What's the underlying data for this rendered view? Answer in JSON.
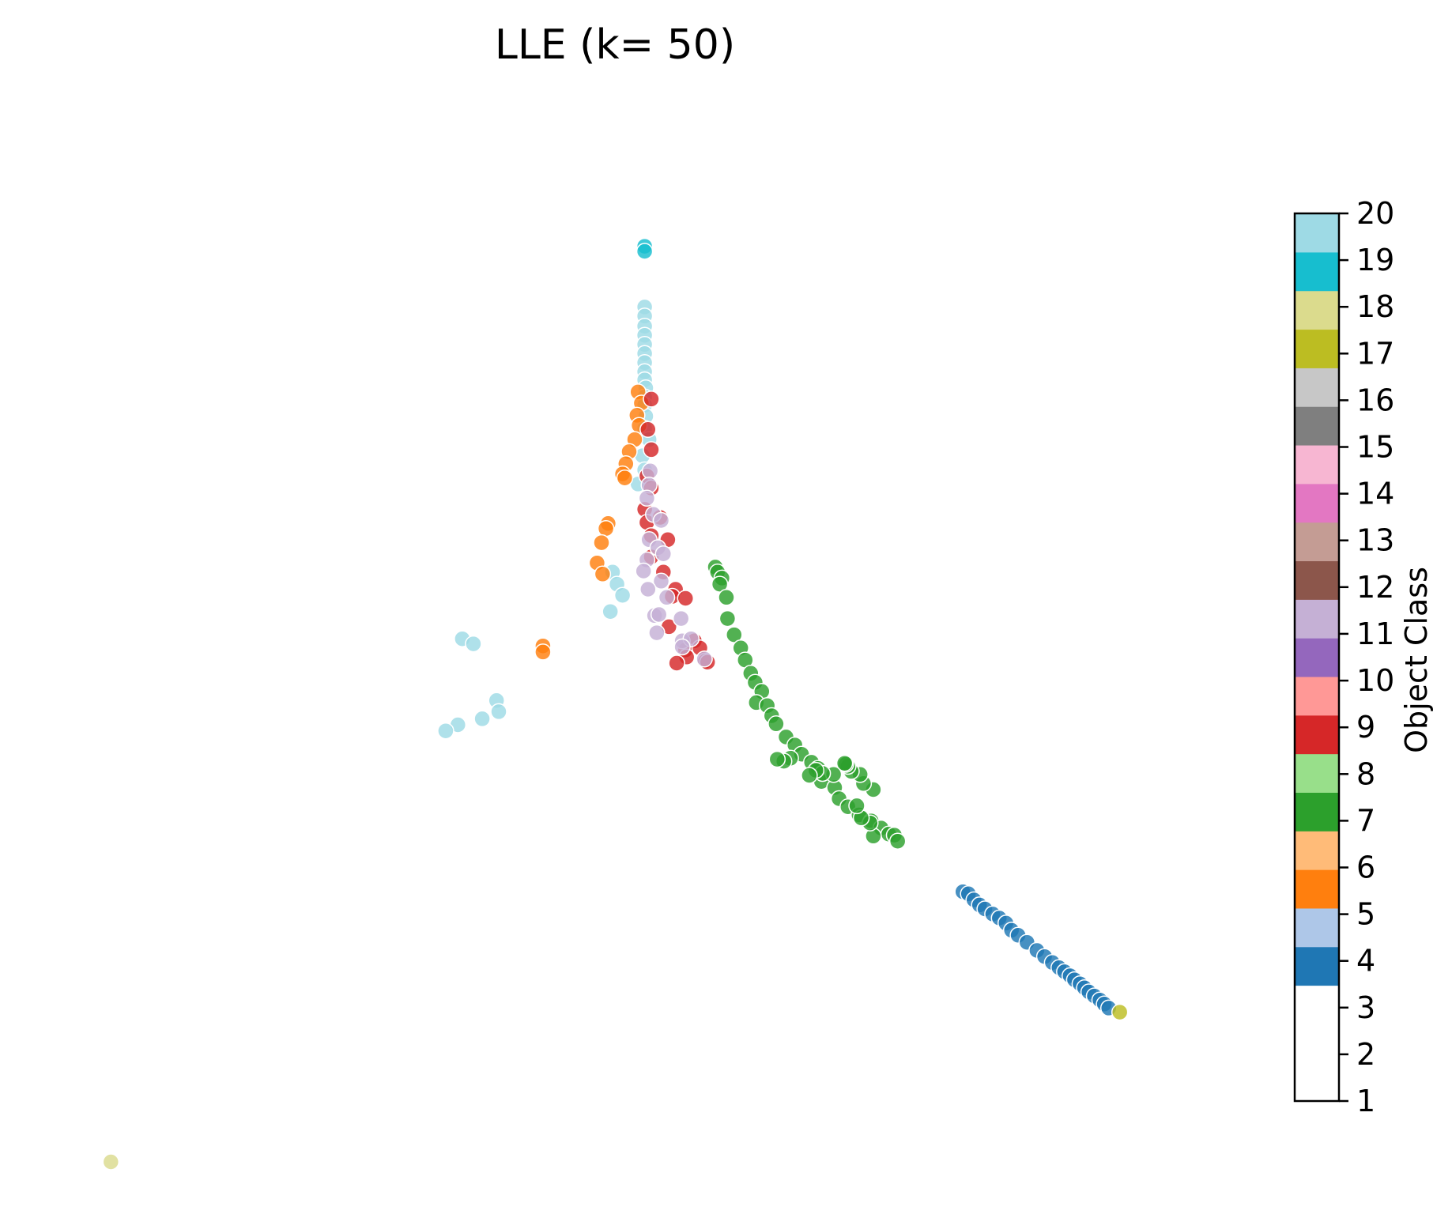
{
  "chart_data": {
    "type": "scatter",
    "title": "LLE (k= 50)",
    "axes_visible": false,
    "colorbar": {
      "label": "Object Class",
      "range": [
        1,
        20
      ],
      "ticks": [
        "1",
        "2",
        "3",
        "4",
        "5",
        "6",
        "7",
        "8",
        "9",
        "10",
        "11",
        "12",
        "13",
        "14",
        "15",
        "16",
        "17",
        "18",
        "19",
        "20"
      ],
      "colors": [
        "#ffffff",
        "#ffffff",
        "#ffffff",
        "#1f77b4",
        "#aec7e8",
        "#ff7f0e",
        "#ffbb78",
        "#2ca02c",
        "#98df8a",
        "#d62728",
        "#ff9896",
        "#9467bd",
        "#c5b0d5",
        "#8c564b",
        "#c49c94",
        "#e377c2",
        "#f7b6d2",
        "#7f7f7f",
        "#c7c7c7",
        "#bcbd22",
        "#dbdb8d",
        "#17becf",
        "#9edae5"
      ]
    },
    "xlim": [
      0,
      100
    ],
    "ylim": [
      0,
      100
    ],
    "class_colors": {
      "4": "#1f77b4",
      "5": "#aec7e8",
      "6": "#ff7f0e",
      "7": "#2ca02c",
      "9": "#d62728",
      "11": "#c5b0d5",
      "16": "#bcbd22",
      "17": "#dbdb8d",
      "18": "#17becf",
      "19": "#9edae5"
    },
    "series": [
      {
        "class": 18,
        "points": [
          [
            51.9,
            90.5
          ],
          [
            51.9,
            90.0
          ]
        ]
      },
      {
        "class": 19,
        "points": [
          [
            51.9,
            84.5
          ],
          [
            51.9,
            83.6
          ],
          [
            51.9,
            82.6
          ],
          [
            51.9,
            81.7
          ],
          [
            51.9,
            80.8
          ],
          [
            51.9,
            79.9
          ],
          [
            51.9,
            79.0
          ],
          [
            51.9,
            78.1
          ],
          [
            51.9,
            77.3
          ],
          [
            52.0,
            76.5
          ],
          [
            51.9,
            75.6
          ],
          [
            51.9,
            74.8
          ],
          [
            52.0,
            73.7
          ],
          [
            51.9,
            72.5
          ],
          [
            52.3,
            71.4
          ],
          [
            51.7,
            69.8
          ],
          [
            51.9,
            68.4
          ],
          [
            51.3,
            67.0
          ],
          [
            49.0,
            58.3
          ],
          [
            49.4,
            57.1
          ],
          [
            49.9,
            56.0
          ],
          [
            48.8,
            54.4
          ],
          [
            35.4,
            51.7
          ],
          [
            36.4,
            51.2
          ],
          [
            38.5,
            45.6
          ],
          [
            38.7,
            44.5
          ],
          [
            37.2,
            43.8
          ],
          [
            35.0,
            43.2
          ],
          [
            33.9,
            42.6
          ]
        ]
      },
      {
        "class": 6,
        "points": [
          [
            51.3,
            76.1
          ],
          [
            51.6,
            75.0
          ],
          [
            51.2,
            73.8
          ],
          [
            51.4,
            72.8
          ],
          [
            51.0,
            71.4
          ],
          [
            50.5,
            70.2
          ],
          [
            50.2,
            69.0
          ],
          [
            49.9,
            68.0
          ],
          [
            50.1,
            67.6
          ],
          [
            48.6,
            63.1
          ],
          [
            48.4,
            62.6
          ],
          [
            48.0,
            61.2
          ],
          [
            47.6,
            59.2
          ],
          [
            48.1,
            58.1
          ],
          [
            42.7,
            51.0
          ],
          [
            42.7,
            50.4
          ]
        ]
      },
      {
        "class": 9,
        "points": [
          [
            52.5,
            75.4
          ],
          [
            52.2,
            72.4
          ],
          [
            52.5,
            70.4
          ],
          [
            52.1,
            67.8
          ],
          [
            52.5,
            66.6
          ],
          [
            51.9,
            64.5
          ],
          [
            52.1,
            63.2
          ],
          [
            53.3,
            63.7
          ],
          [
            52.5,
            61.9
          ],
          [
            54.0,
            61.5
          ],
          [
            52.5,
            59.8
          ],
          [
            53.6,
            58.3
          ],
          [
            54.7,
            56.6
          ],
          [
            54.4,
            55.9
          ],
          [
            55.6,
            55.7
          ],
          [
            54.1,
            52.9
          ],
          [
            56.4,
            51.5
          ],
          [
            55.6,
            50.6
          ],
          [
            56.9,
            50.8
          ],
          [
            55.7,
            49.9
          ],
          [
            54.8,
            49.3
          ],
          [
            57.4,
            49.5
          ],
          [
            57.6,
            49.4
          ]
        ]
      },
      {
        "class": 11,
        "points": [
          [
            52.4,
            68.3
          ],
          [
            52.3,
            66.9
          ],
          [
            52.1,
            65.6
          ],
          [
            52.7,
            64.0
          ],
          [
            53.4,
            63.4
          ],
          [
            52.3,
            61.5
          ],
          [
            53.1,
            60.7
          ],
          [
            53.6,
            60.1
          ],
          [
            52.1,
            59.5
          ],
          [
            51.8,
            58.4
          ],
          [
            53.4,
            57.4
          ],
          [
            52.2,
            56.6
          ],
          [
            53.9,
            55.8
          ],
          [
            52.8,
            54.0
          ],
          [
            53.2,
            54.1
          ],
          [
            55.2,
            53.7
          ],
          [
            53.0,
            52.3
          ],
          [
            55.3,
            51.5
          ],
          [
            56.1,
            51.7
          ],
          [
            55.3,
            50.9
          ],
          [
            57.3,
            49.7
          ]
        ]
      },
      {
        "class": 7,
        "points": [
          [
            58.3,
            58.8
          ],
          [
            58.5,
            58.3
          ],
          [
            58.9,
            57.7
          ],
          [
            58.7,
            57.1
          ],
          [
            59.3,
            55.8
          ],
          [
            59.4,
            53.7
          ],
          [
            60.0,
            52.1
          ],
          [
            60.6,
            50.8
          ],
          [
            61.0,
            49.6
          ],
          [
            61.5,
            48.3
          ],
          [
            61.9,
            47.4
          ],
          [
            62.5,
            46.5
          ],
          [
            62.0,
            45.4
          ],
          [
            63.0,
            45.1
          ],
          [
            63.4,
            44.1
          ],
          [
            63.8,
            43.3
          ],
          [
            64.7,
            42.0
          ],
          [
            65.5,
            41.2
          ],
          [
            66.1,
            40.3
          ],
          [
            67.0,
            39.5
          ],
          [
            67.6,
            38.9
          ],
          [
            67.9,
            37.6
          ],
          [
            69.1,
            37.0
          ],
          [
            69.5,
            35.9
          ],
          [
            70.3,
            35.1
          ],
          [
            71.3,
            34.3
          ],
          [
            72.4,
            33.7
          ],
          [
            73.3,
            33.0
          ],
          [
            74.0,
            32.4
          ],
          [
            74.5,
            32.3
          ],
          [
            74.8,
            31.7
          ],
          [
            72.6,
            32.2
          ],
          [
            72.3,
            33.5
          ],
          [
            71.5,
            34.0
          ],
          [
            71.1,
            35.2
          ],
          [
            72.6,
            36.8
          ],
          [
            71.7,
            37.4
          ],
          [
            71.4,
            38.3
          ],
          [
            70.6,
            38.6
          ],
          [
            70.3,
            39.1
          ],
          [
            70.1,
            39.3
          ],
          [
            70.0,
            39.4
          ],
          [
            69.0,
            38.3
          ],
          [
            68.0,
            38.4
          ],
          [
            67.4,
            38.7
          ],
          [
            66.8,
            38.2
          ],
          [
            65.1,
            39.9
          ],
          [
            64.5,
            39.6
          ],
          [
            63.9,
            39.8
          ]
        ]
      },
      {
        "class": 4,
        "points": [
          [
            80.7,
            26.7
          ],
          [
            81.2,
            26.5
          ],
          [
            81.7,
            25.9
          ],
          [
            82.2,
            25.4
          ],
          [
            82.7,
            25.0
          ],
          [
            83.4,
            24.5
          ],
          [
            84.0,
            24.1
          ],
          [
            84.6,
            23.6
          ],
          [
            85.1,
            22.9
          ],
          [
            85.7,
            22.4
          ],
          [
            86.5,
            21.7
          ],
          [
            87.4,
            20.9
          ],
          [
            88.1,
            20.3
          ],
          [
            88.8,
            19.7
          ],
          [
            89.4,
            19.2
          ],
          [
            89.9,
            18.8
          ],
          [
            90.4,
            18.4
          ],
          [
            90.8,
            18.0
          ],
          [
            91.3,
            17.6
          ],
          [
            91.7,
            17.2
          ],
          [
            92.1,
            16.8
          ],
          [
            92.6,
            16.4
          ],
          [
            93.1,
            16.0
          ],
          [
            93.5,
            15.6
          ],
          [
            93.9,
            15.2
          ]
        ]
      },
      {
        "class": 16,
        "points": [
          [
            94.9,
            14.8
          ]
        ]
      },
      {
        "class": 17,
        "points": [
          [
            3.6,
            0.0
          ]
        ]
      }
    ]
  }
}
